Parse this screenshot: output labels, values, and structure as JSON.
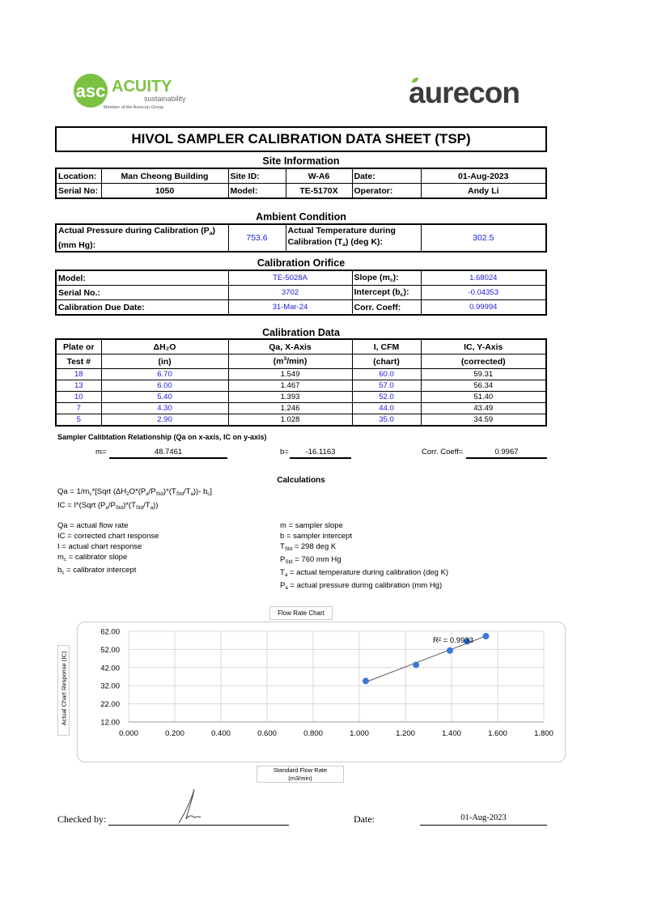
{
  "logos": {
    "acuity": {
      "name": "ACUITY",
      "sub": "sustainability",
      "tagline": "Member of the Aurecon Group",
      "color": "#7cc242"
    },
    "aurecon": {
      "name": "aurecon",
      "color": "#3c3c3c",
      "leaf_color": "#7cc242"
    }
  },
  "title": "HIVOL SAMPLER CALIBRATION  DATA SHEET (TSP)",
  "site_information": {
    "heading": "Site Information",
    "location_label": "Location:",
    "location": "Man Cheong Building",
    "site_id_label": "Site ID:",
    "site_id": "W-A6",
    "date_label": "Date:",
    "date": "01-Aug-2023",
    "serial_label": "Serial No:",
    "serial": "1050",
    "model_label": "Model:",
    "model": "TE-5170X",
    "operator_label": "Operator:",
    "operator": "Andy Li"
  },
  "ambient_condition": {
    "heading": "Ambient Condition",
    "pressure_label": [
      {
        "t": "Actual Pressure during Calibration (P"
      },
      {
        "sub": "a"
      },
      {
        "t": ")"
      },
      {
        "br": true
      },
      {
        "t": "(mm Hg):"
      }
    ],
    "pressure": "753.6",
    "temperature_label": [
      {
        "t": "Actual Temperature during"
      },
      {
        "br": true
      },
      {
        "t": "Calibration (T"
      },
      {
        "sub": "a"
      },
      {
        "t": ") (deg K):"
      }
    ],
    "temperature": "302.5"
  },
  "calibration_orifice": {
    "heading": "Calibration Orifice",
    "model_label": "Model:",
    "model": "TE-5028A",
    "slope_label": [
      {
        "t": "Slope (m"
      },
      {
        "sub": "c"
      },
      {
        "t": "):"
      }
    ],
    "slope": "1.68024",
    "serial_label": "Serial No.:",
    "serial": "3702",
    "intercept_label": [
      {
        "t": "Intercept (b"
      },
      {
        "sub": "c"
      },
      {
        "t": "):"
      }
    ],
    "intercept": "-0.04353",
    "due_label": "Calibration Due Date:",
    "due": "31-Mar-24",
    "corr_label": "Corr. Coeff:",
    "corr": "0.99994"
  },
  "calibration_data": {
    "heading": "Calibration Data",
    "headers_top": [
      "Plate or",
      "ΔH₂O",
      "Qa, X-Axis",
      "I, CFM",
      "IC, Y-Axis"
    ],
    "headers_bottom": [
      [
        {
          "t": "Test #"
        }
      ],
      [
        {
          "t": "(in)"
        }
      ],
      [
        {
          "t": "(m"
        },
        {
          "sup": "3"
        },
        {
          "t": "/min)"
        }
      ],
      [
        {
          "t": "(chart)"
        }
      ],
      [
        {
          "t": "(corrected)"
        }
      ]
    ],
    "rows": [
      [
        "18",
        "6.70",
        "1.549",
        "60.0",
        "59.31"
      ],
      [
        "13",
        "6.00",
        "1.467",
        "57.0",
        "56.34"
      ],
      [
        "10",
        "5.40",
        "1.393",
        "52.0",
        "51.40"
      ],
      [
        "7",
        "4.30",
        "1.246",
        "44.0",
        "43.49"
      ],
      [
        "5",
        "2.90",
        "1.028",
        "35.0",
        "34.59"
      ]
    ]
  },
  "relationship": {
    "heading": "Sampler Calibtation Relationship (Qa on x-axis, IC on y-axis)",
    "m_label": "m=",
    "m": "48.7461",
    "b_label": "b=",
    "b": "-16.1163",
    "corr_label": "Corr. Coeff=",
    "corr": "0.9967"
  },
  "calculations": {
    "heading": "Calculations",
    "formulas": [
      [
        {
          "t": "Qa = 1/m"
        },
        {
          "sub": "c"
        },
        {
          "t": "*[Sqrt (ΔH"
        },
        {
          "sub": "2"
        },
        {
          "t": "O*(P"
        },
        {
          "sub": "a"
        },
        {
          "t": "/P"
        },
        {
          "sub": "Std"
        },
        {
          "t": ")*(T"
        },
        {
          "sub": "Std"
        },
        {
          "t": "/T"
        },
        {
          "sub": "a"
        },
        {
          "t": "))- b"
        },
        {
          "sub": "c"
        },
        {
          "t": "]"
        }
      ],
      [
        {
          "t": "IC = I*(Sqrt (P"
        },
        {
          "sub": "a"
        },
        {
          "t": "/P"
        },
        {
          "sub": "Std"
        },
        {
          "t": ")*(T"
        },
        {
          "sub": "Std"
        },
        {
          "t": "/T"
        },
        {
          "sub": "a"
        },
        {
          "t": "))"
        }
      ]
    ],
    "definitions_left": [
      [
        {
          "t": "Qa = actual flow rate"
        }
      ],
      [
        {
          "t": "IC = corrected chart response"
        }
      ],
      [
        {
          "t": "I = actual chart response"
        }
      ],
      [
        {
          "t": "m"
        },
        {
          "sub": "c"
        },
        {
          "t": "  = calibrator slope"
        }
      ],
      [
        {
          "t": "b"
        },
        {
          "sub": "c"
        },
        {
          "t": "  = calibrator intercept"
        }
      ]
    ],
    "definitions_right": [
      [
        {
          "t": "m = sampler slope"
        }
      ],
      [
        {
          "t": "b  = sampler intercept"
        }
      ],
      [
        {
          "t": "T"
        },
        {
          "sub": "Std"
        },
        {
          "t": " = 298 deg K"
        }
      ],
      [
        {
          "t": "P"
        },
        {
          "sub": "Std"
        },
        {
          "t": " = 760 mm Hg"
        }
      ],
      [
        {
          "t": "T"
        },
        {
          "sub": "a"
        },
        {
          "t": " = actual temperature during calibration (deg K)"
        }
      ],
      [
        {
          "t": "P"
        },
        {
          "sub": "a"
        },
        {
          "t": " = actual pressure during calibration (mm Hg)"
        }
      ]
    ]
  },
  "chart_data": {
    "type": "scatter",
    "title": "Flow Rate Chart",
    "xlabel": "Standard Flow Rate (m3/min)",
    "xlabel_lines": [
      "Standard Flow Rate",
      "(m3/min)"
    ],
    "ylabel": "Actual Chart Response (IC)",
    "xlim": [
      0,
      1.8
    ],
    "ylim": [
      12,
      62
    ],
    "x_ticks": [
      "0.000",
      "0.200",
      "0.400",
      "0.600",
      "0.800",
      "1.000",
      "1.200",
      "1.400",
      "1.600",
      "1.800"
    ],
    "y_ticks": [
      "12.00",
      "22.00",
      "32.00",
      "42.00",
      "52.00",
      "62.00"
    ],
    "grid": true,
    "series": [
      {
        "x": [
          1.549,
          1.467,
          1.393,
          1.246,
          1.028
        ],
        "y": [
          59.31,
          56.34,
          51.4,
          43.49,
          34.59
        ]
      }
    ],
    "trendline": {
      "type": "linear",
      "slope": 48.7461,
      "intercept": -16.1163,
      "label": "R² = 0.9933"
    },
    "marker_color": "#3a78d8"
  },
  "footer": {
    "checked_label": "Checked by:",
    "date_label": "Date:",
    "date": "01-Aug-2023"
  }
}
